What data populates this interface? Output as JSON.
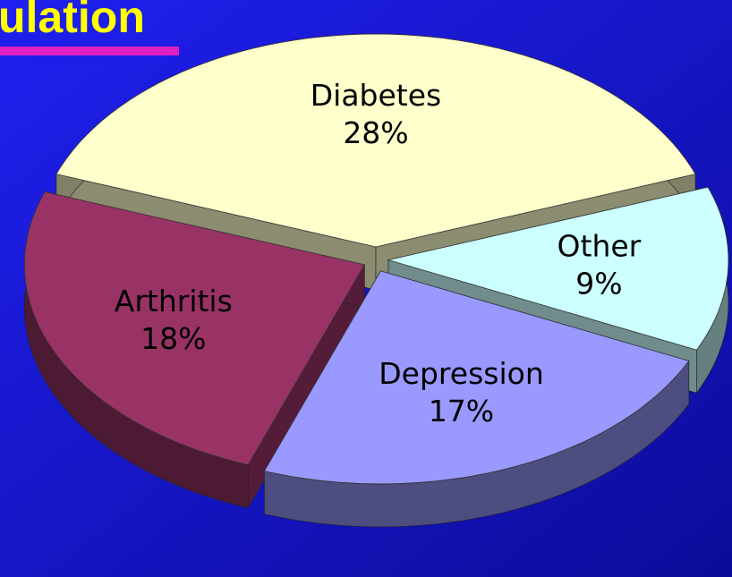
{
  "chart_data": {
    "type": "pie",
    "title": "ulation",
    "categories": [
      "Diabetes",
      "Other",
      "Depression",
      "Arthritis"
    ],
    "values": [
      28,
      9,
      17,
      18
    ],
    "value_labels": [
      "28%",
      "9%",
      "17%",
      "18%"
    ],
    "colors": [
      "#ffffcc",
      "#ccffff",
      "#9999ff",
      "#993366"
    ]
  }
}
